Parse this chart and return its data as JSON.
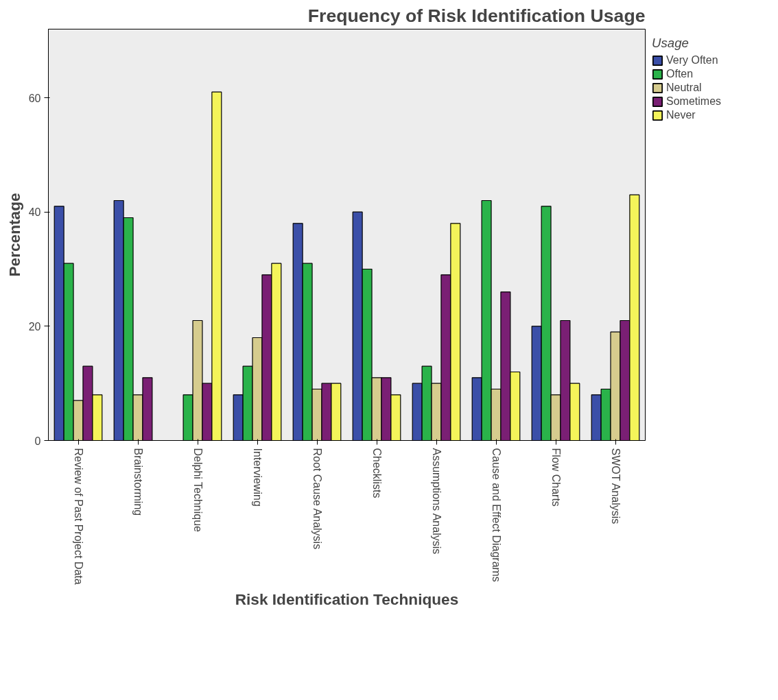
{
  "chart_data": {
    "type": "bar",
    "title": "Frequency of Risk Identification Usage",
    "xlabel": "Risk Identification Techniques",
    "ylabel": "Percentage",
    "legend_title": "Usage",
    "categories": [
      "Review of Past Project Data",
      "Brainstorming",
      "Delphi Technique",
      "Interviewing",
      "Root Cause Analysis",
      "Checklists",
      "Assumptions Analysis",
      "Cause and Effect Diagrams",
      "Flow Charts",
      "SWOT Analysis"
    ],
    "series": [
      {
        "name": "Very Often",
        "color": "#3b4fa8",
        "values": [
          41,
          42,
          0,
          8,
          38,
          40,
          10,
          11,
          20,
          8
        ]
      },
      {
        "name": "Often",
        "color": "#2ab34a",
        "values": [
          31,
          39,
          8,
          13,
          31,
          30,
          13,
          42,
          41,
          9
        ]
      },
      {
        "name": "Neutral",
        "color": "#d6cc8e",
        "values": [
          7,
          8,
          21,
          18,
          9,
          11,
          10,
          9,
          8,
          19
        ]
      },
      {
        "name": "Sometimes",
        "color": "#7a1f74",
        "values": [
          13,
          11,
          10,
          29,
          10,
          11,
          29,
          26,
          21,
          21
        ]
      },
      {
        "name": "Never",
        "color": "#f4f45a",
        "values": [
          8,
          0,
          61,
          31,
          10,
          8,
          38,
          12,
          10,
          43
        ]
      }
    ],
    "ylim": [
      0,
      72
    ],
    "yticks": [
      0,
      20,
      40,
      60
    ],
    "grid": false,
    "legend": "top right"
  }
}
